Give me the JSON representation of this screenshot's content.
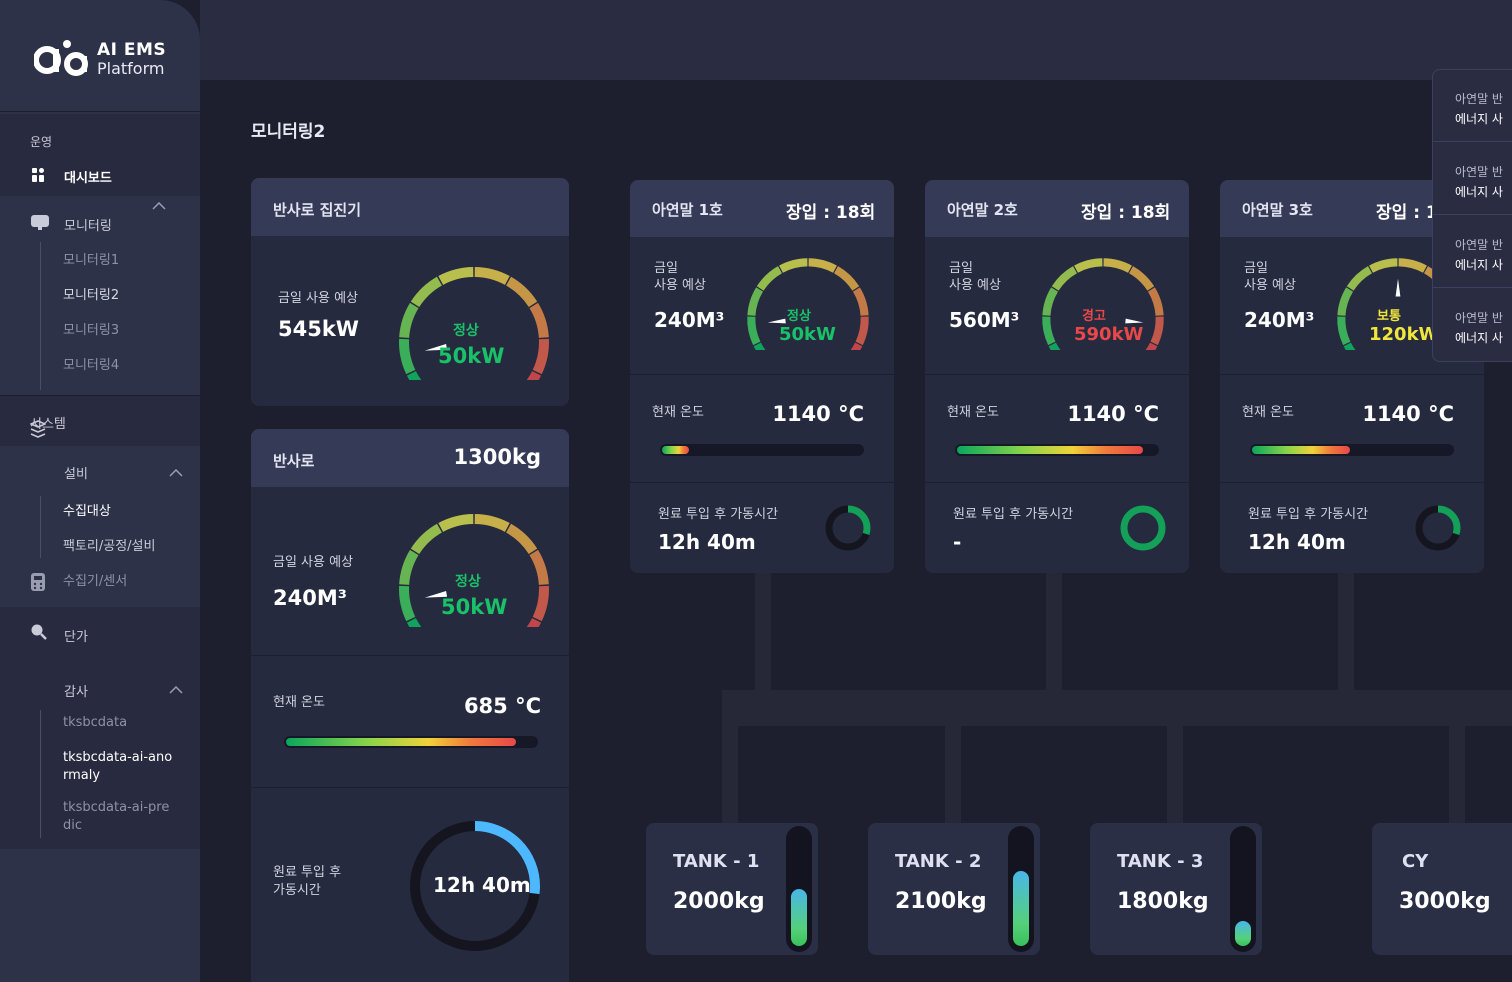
{
  "brand": {
    "line1": "AI EMS",
    "line2": "Platform"
  },
  "sidebar": {
    "section_ops": "운영",
    "dashboard": "대시보드",
    "monitoring": "모니터링",
    "monitoring_items": [
      "모니터링1",
      "모니터링2",
      "모니터링3",
      "모니터링4"
    ],
    "section_system": "시스템",
    "equipment": "설비",
    "equipment_items": [
      "수집대상",
      "팩토리/공정/설비",
      "수집기/센서"
    ],
    "price": "단가",
    "audit": "감사",
    "audit_items": [
      "tksbcdata",
      "tksbcdata-ai-anormaly",
      "tksbcdata-ai-predic"
    ]
  },
  "page": {
    "title": "모니터링2"
  },
  "collector": {
    "title": "반사로 집진기",
    "usage_label": "금일 사용 예상",
    "usage_value": "545kW",
    "status": "정상",
    "gauge_value": "50kW",
    "status_color": "#19c168"
  },
  "furnace": {
    "title": "반사로",
    "weight": "1300kg",
    "usage_label": "금일 사용 예상",
    "usage_value": "240M³",
    "status": "정상",
    "gauge_value": "50kW",
    "temp_label": "현재 온도",
    "temp_value": "685 °C",
    "temp_level": 0.92,
    "runtime_label": "원료 투입 후 가동시간",
    "runtime_value": "12h 40m",
    "runtime_fraction": 0.27
  },
  "zinc_units": [
    {
      "title": "아연말 1호",
      "charge": "장입 : 18회",
      "usage_label_1": "금일",
      "usage_label_2": "사용 예상",
      "usage_value": "240M³",
      "status": "정상",
      "gauge_value": "50kW",
      "status_color": "#19c168",
      "temp_label": "현재 온도",
      "temp_value": "1140 °C",
      "temp_level": 0.15,
      "runtime_label": "원료 투입 후 가동시간",
      "runtime_value": "12h 40m",
      "runtime_fraction": 0.3
    },
    {
      "title": "아연말 2호",
      "charge": "장입 : 18회",
      "usage_label_1": "금일",
      "usage_label_2": "사용 예상",
      "usage_value": "560M³",
      "status": "경고",
      "gauge_value": "590kW",
      "status_color": "#e84848",
      "temp_label": "현재 온도",
      "temp_value": "1140 °C",
      "temp_level": 0.93,
      "runtime_label": "원료 투입 후 가동시간",
      "runtime_value": "-",
      "runtime_fraction": 1.0
    },
    {
      "title": "아연말 3호",
      "charge": "장입 : 1",
      "usage_label_1": "금일",
      "usage_label_2": "사용 예상",
      "usage_value": "240M³",
      "status": "보통",
      "gauge_value": "120kW",
      "status_color": "#f0e63c",
      "temp_label": "현재 온도",
      "temp_value": "1140 °C",
      "temp_level": 0.5,
      "runtime_label": "원료 투입 후 가동시간",
      "runtime_value": "12h 40m",
      "runtime_fraction": 0.3
    }
  ],
  "tanks": [
    {
      "name": "TANK - 1",
      "value": "2000kg",
      "level": 0.5
    },
    {
      "name": "TANK - 2",
      "value": "2100kg",
      "level": 0.66
    },
    {
      "name": "TANK - 3",
      "value": "1800kg",
      "level": 0.22
    },
    {
      "name": "CY",
      "value": "3000kg"
    }
  ],
  "notifications": [
    {
      "line1": "아연말 반",
      "line2": "에너지 사"
    },
    {
      "line1": "아연말 반",
      "line2": "에너지 사"
    },
    {
      "line1": "아연말 반",
      "line2": "에너지 사"
    },
    {
      "line1": "아연말 반",
      "line2": "에너지 사"
    }
  ]
}
